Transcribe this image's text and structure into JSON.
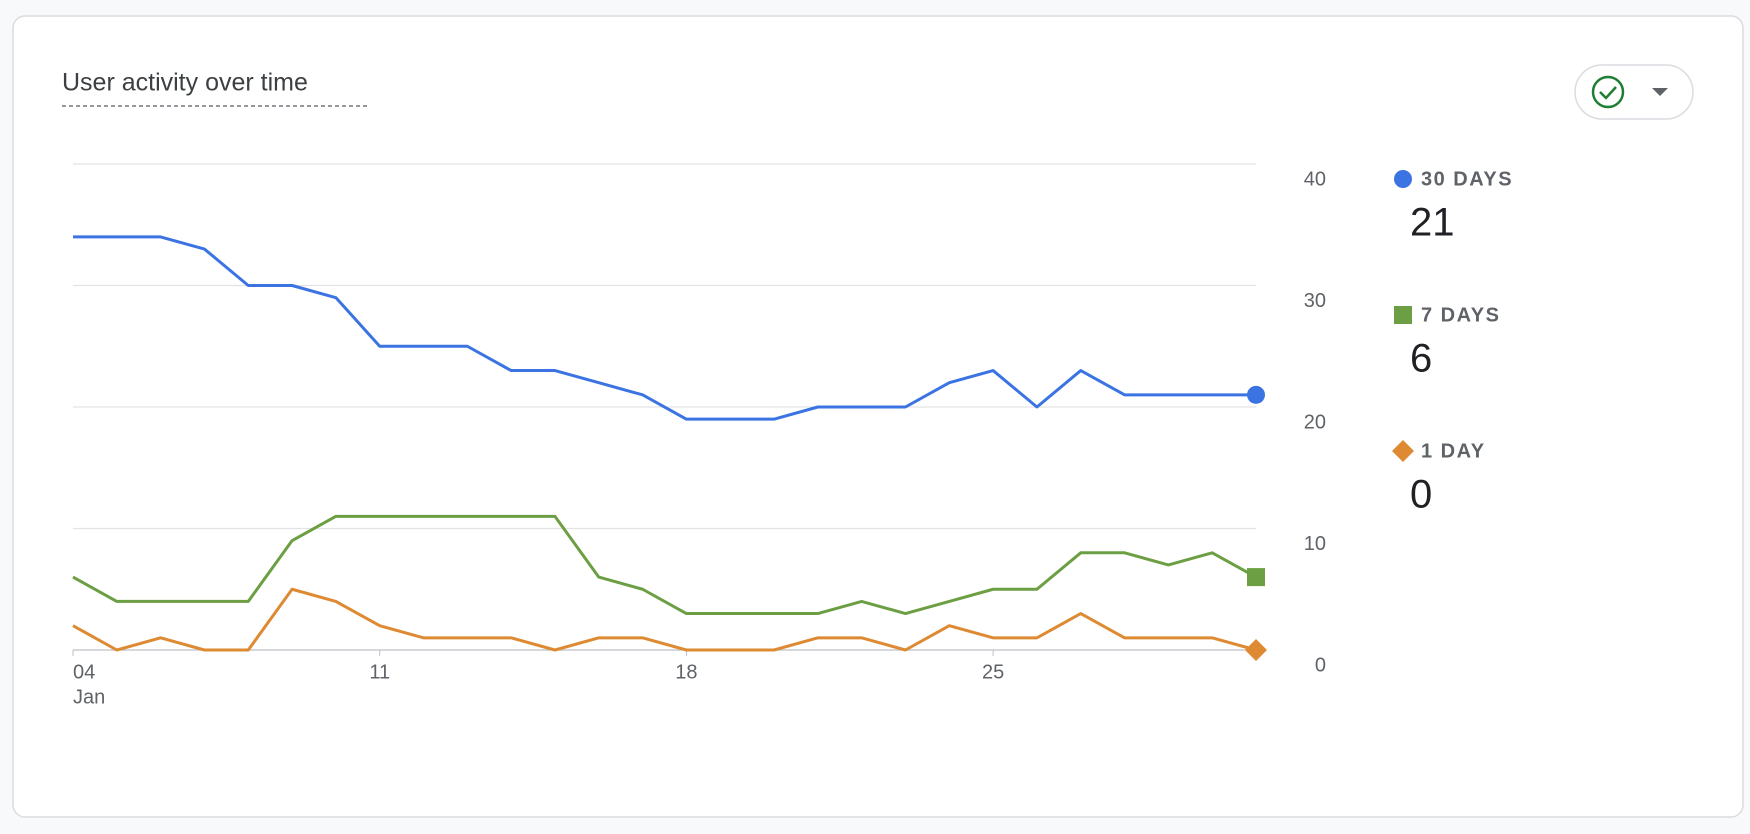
{
  "chart_data": {
    "type": "line",
    "title": "User activity over time",
    "x": [
      4,
      5,
      6,
      7,
      8,
      9,
      10,
      11,
      12,
      13,
      14,
      15,
      16,
      17,
      18,
      19,
      20,
      21,
      22,
      23,
      24,
      25,
      26,
      27,
      28,
      29,
      30,
      31
    ],
    "xlim": [
      4,
      31
    ],
    "xticks": [
      {
        "value": 4,
        "label": "04"
      },
      11,
      18,
      25
    ],
    "month_label": "Jan",
    "ylim": [
      0,
      40
    ],
    "yticks": [
      0,
      10,
      20,
      30,
      40
    ],
    "grid": true,
    "series": [
      {
        "name": "30 DAYS",
        "color": "#3b74e2",
        "marker": "circle",
        "values": [
          34,
          34,
          34,
          33,
          30,
          30,
          29,
          25,
          25,
          25,
          23,
          23,
          22,
          21,
          19,
          19,
          19,
          20,
          20,
          20,
          22,
          23,
          20,
          23,
          21,
          21,
          21,
          21
        ]
      },
      {
        "name": "7 DAYS",
        "color": "#6c9f43",
        "marker": "square",
        "values": [
          6,
          4,
          4,
          4,
          4,
          9,
          11,
          11,
          11,
          11,
          11,
          11,
          6,
          5,
          3,
          3,
          3,
          3,
          4,
          3,
          4,
          5,
          5,
          8,
          8,
          7,
          8,
          6
        ]
      },
      {
        "name": "1 DAY",
        "color": "#dd8a33",
        "marker": "diamond",
        "values": [
          2,
          0,
          1,
          0,
          0,
          5,
          4,
          2,
          1,
          1,
          1,
          0,
          1,
          1,
          0,
          0,
          0,
          1,
          1,
          0,
          2,
          1,
          1,
          3,
          1,
          1,
          1,
          0
        ]
      }
    ]
  }
}
